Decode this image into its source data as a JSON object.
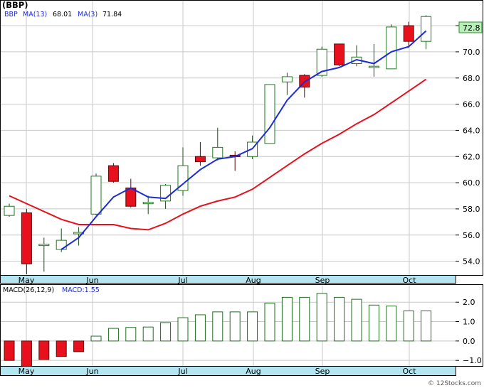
{
  "header": {
    "symbol_title": "(BBP)",
    "legend_symbol": "BBP",
    "ma_long_label": "MA(13)",
    "ma_long_value": "68.01",
    "ma_short_label": "MA(3)",
    "ma_short_value": "71.84",
    "macd_label": "MACD(26,12,9)",
    "macd_value_label": "MACD:1.55",
    "watermark": "© 12Stocks.com"
  },
  "colors": {
    "up_candle": "#1f7a1f",
    "down_candle": "#e8101c",
    "ma_long": "#e8101c",
    "ma_short": "#1c2bd6",
    "macd_bar": "#1f6f1f",
    "axis_band": "#b4e6f2",
    "grid": "#c8c8c8",
    "last_price_box": "#b8f0b8"
  },
  "chart_data": [
    {
      "type": "candlestick",
      "title": "(BBP)",
      "x_tick_labels": [
        "May",
        "Jun",
        "Jul",
        "Aug",
        "Sep",
        "Oct"
      ],
      "y_ticks": [
        54.0,
        56.0,
        58.0,
        60.0,
        62.0,
        64.0,
        66.0,
        68.0,
        70.0,
        72.0
      ],
      "ylim": [
        53.0,
        73.2
      ],
      "last_price": "72.8",
      "grid": true,
      "candles": [
        {
          "o": 57.5,
          "c": 58.2,
          "h": 58.4,
          "l": 57.4
        },
        {
          "o": 57.7,
          "c": 53.8,
          "h": 58.0,
          "l": 53.0
        },
        {
          "o": 55.3,
          "c": 55.3,
          "h": 55.8,
          "l": 53.2
        },
        {
          "o": 54.9,
          "c": 55.6,
          "h": 56.5,
          "l": 54.7
        },
        {
          "o": 56.2,
          "c": 56.2,
          "h": 56.6,
          "l": 55.2
        },
        {
          "o": 57.6,
          "c": 60.5,
          "h": 60.7,
          "l": 57.5
        },
        {
          "o": 61.3,
          "c": 60.1,
          "h": 61.5,
          "l": 60.0
        },
        {
          "o": 59.6,
          "c": 58.2,
          "h": 60.3,
          "l": 58.1
        },
        {
          "o": 58.5,
          "c": 58.5,
          "h": 59.0,
          "l": 57.6
        },
        {
          "o": 58.6,
          "c": 59.8,
          "h": 59.9,
          "l": 58.0
        },
        {
          "o": 59.4,
          "c": 61.3,
          "h": 62.7,
          "l": 59.0
        },
        {
          "o": 62.0,
          "c": 61.6,
          "h": 63.1,
          "l": 61.3
        },
        {
          "o": 61.9,
          "c": 62.7,
          "h": 64.2,
          "l": 61.7
        },
        {
          "o": 62.1,
          "c": 62.0,
          "h": 62.4,
          "l": 60.9
        },
        {
          "o": 62.0,
          "c": 63.1,
          "h": 63.6,
          "l": 61.8
        },
        {
          "o": 63.0,
          "c": 67.5,
          "h": 67.5,
          "l": 63.0
        },
        {
          "o": 67.7,
          "c": 68.1,
          "h": 68.4,
          "l": 66.7
        },
        {
          "o": 68.2,
          "c": 67.3,
          "h": 68.3,
          "l": 66.5
        },
        {
          "o": 68.2,
          "c": 70.2,
          "h": 70.4,
          "l": 68.1
        },
        {
          "o": 70.6,
          "c": 69.0,
          "h": 70.6,
          "l": 68.9
        },
        {
          "o": 69.1,
          "c": 69.6,
          "h": 70.5,
          "l": 68.9
        },
        {
          "o": 68.9,
          "c": 68.9,
          "h": 70.6,
          "l": 68.1
        },
        {
          "o": 68.7,
          "c": 71.9,
          "h": 72.1,
          "l": 68.7
        },
        {
          "o": 72.0,
          "c": 70.8,
          "h": 72.3,
          "l": 70.3
        },
        {
          "o": 70.8,
          "c": 72.7,
          "h": 72.8,
          "l": 70.2
        }
      ],
      "ma13": [
        [
          0,
          59.0
        ],
        [
          3,
          57.2
        ],
        [
          4,
          56.8
        ],
        [
          5,
          56.8
        ],
        [
          6,
          56.8
        ],
        [
          7,
          56.5
        ],
        [
          8,
          56.4
        ],
        [
          9,
          56.9
        ],
        [
          10,
          57.6
        ],
        [
          11,
          58.2
        ],
        [
          12,
          58.6
        ],
        [
          13,
          58.9
        ],
        [
          14,
          59.5
        ],
        [
          15,
          60.4
        ],
        [
          16,
          61.3
        ],
        [
          17,
          62.2
        ],
        [
          18,
          63.0
        ],
        [
          19,
          63.7
        ],
        [
          20,
          64.5
        ],
        [
          21,
          65.2
        ],
        [
          22,
          66.1
        ],
        [
          23,
          67.0
        ],
        [
          24,
          67.9
        ]
      ],
      "ma3": [
        [
          3,
          54.9
        ],
        [
          4,
          55.8
        ],
        [
          5,
          57.4
        ],
        [
          6,
          58.9
        ],
        [
          7,
          59.6
        ],
        [
          8,
          58.9
        ],
        [
          9,
          58.8
        ],
        [
          10,
          59.9
        ],
        [
          11,
          61.0
        ],
        [
          12,
          61.8
        ],
        [
          13,
          62.0
        ],
        [
          14,
          62.6
        ],
        [
          15,
          64.2
        ],
        [
          16,
          66.3
        ],
        [
          17,
          67.7
        ],
        [
          18,
          68.5
        ],
        [
          19,
          68.8
        ],
        [
          20,
          69.4
        ],
        [
          21,
          69.1
        ],
        [
          22,
          70.0
        ],
        [
          23,
          70.4
        ],
        [
          24,
          71.6
        ]
      ]
    },
    {
      "type": "bar",
      "title": "MACD(26,12,9)",
      "x_tick_labels": [
        "May",
        "Jun",
        "Jul",
        "Aug",
        "Sep",
        "Oct"
      ],
      "y_ticks": [
        -1.0,
        0.0,
        1.0,
        2.0
      ],
      "ylim": [
        -1.25,
        2.85
      ],
      "values": [
        -1.0,
        -1.3,
        -0.95,
        -0.8,
        -0.55,
        0.25,
        0.65,
        0.7,
        0.72,
        0.95,
        1.2,
        1.35,
        1.5,
        1.5,
        1.5,
        1.95,
        2.25,
        2.25,
        2.45,
        2.25,
        2.15,
        1.85,
        1.8,
        1.55,
        1.55
      ]
    }
  ]
}
